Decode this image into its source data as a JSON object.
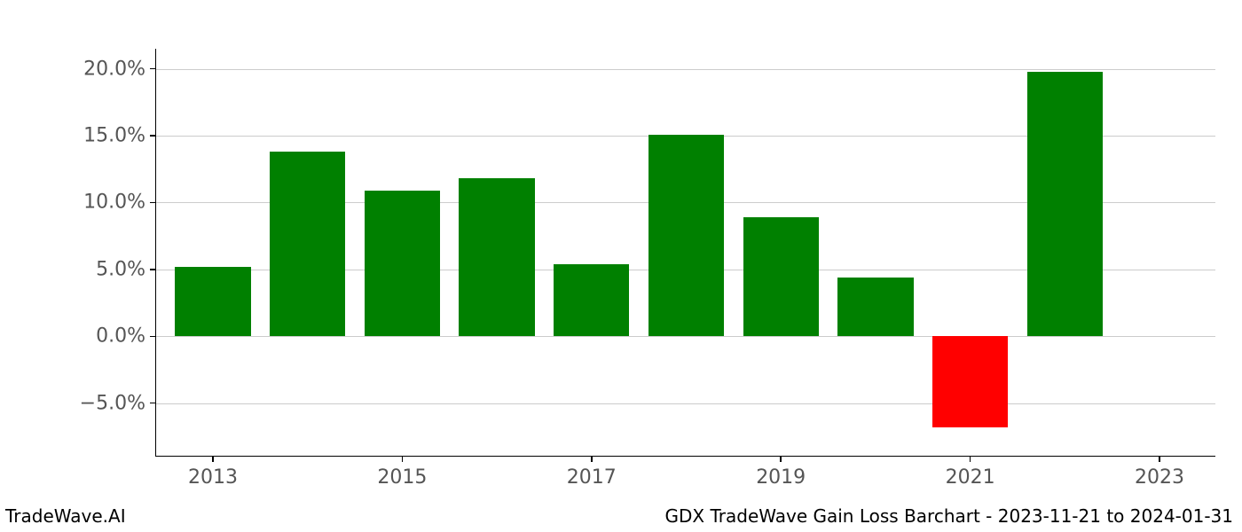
{
  "chart": {
    "type": "bar",
    "years": [
      2013,
      2014,
      2015,
      2016,
      2017,
      2018,
      2019,
      2020,
      2021,
      2022
    ],
    "values": [
      5.2,
      13.8,
      10.9,
      11.8,
      5.4,
      15.1,
      8.9,
      4.4,
      -6.8,
      19.8
    ],
    "positive_color": "#008000",
    "negative_color": "#ff0000",
    "background_color": "#ffffff",
    "grid_color": "#cccccc",
    "axis_color": "#000000",
    "tick_label_color": "#555555",
    "yticks": [
      -5.0,
      0.0,
      5.0,
      10.0,
      15.0,
      20.0
    ],
    "ytick_labels": [
      "−5.0%",
      "0.0%",
      "5.0%",
      "10.0%",
      "15.0%",
      "20.0%"
    ],
    "xticks": [
      2013,
      2015,
      2017,
      2019,
      2021,
      2023
    ],
    "ymin": -9.0,
    "ymax": 21.5,
    "xmin": 2012.4,
    "xmax": 2023.6,
    "bar_width": 0.8,
    "tick_fontsize": 22,
    "footer_fontsize": 20
  },
  "footer": {
    "left": "TradeWave.AI",
    "right": "GDX TradeWave Gain Loss Barchart - 2023-11-21 to 2024-01-31"
  }
}
